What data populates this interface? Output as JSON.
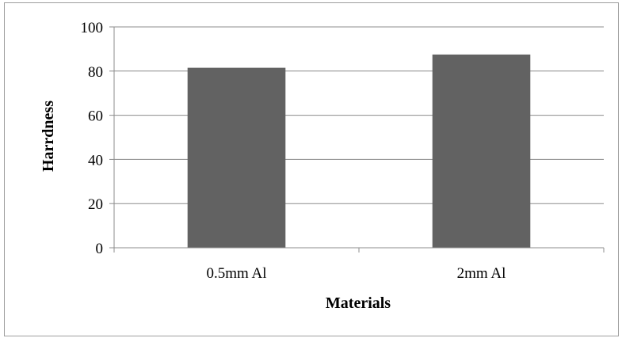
{
  "chart_data": {
    "type": "bar",
    "categories": [
      "0.5mm Al",
      "2mm Al"
    ],
    "values": [
      81.5,
      87.5
    ],
    "title": "",
    "xlabel": "Materials",
    "ylabel": "Harrdness",
    "ylim": [
      0,
      100
    ],
    "yticks": [
      0,
      20,
      40,
      60,
      80,
      100
    ],
    "grid": true,
    "legend": "none",
    "bar_color": "#626262",
    "grid_color": "#8c8c8c"
  }
}
